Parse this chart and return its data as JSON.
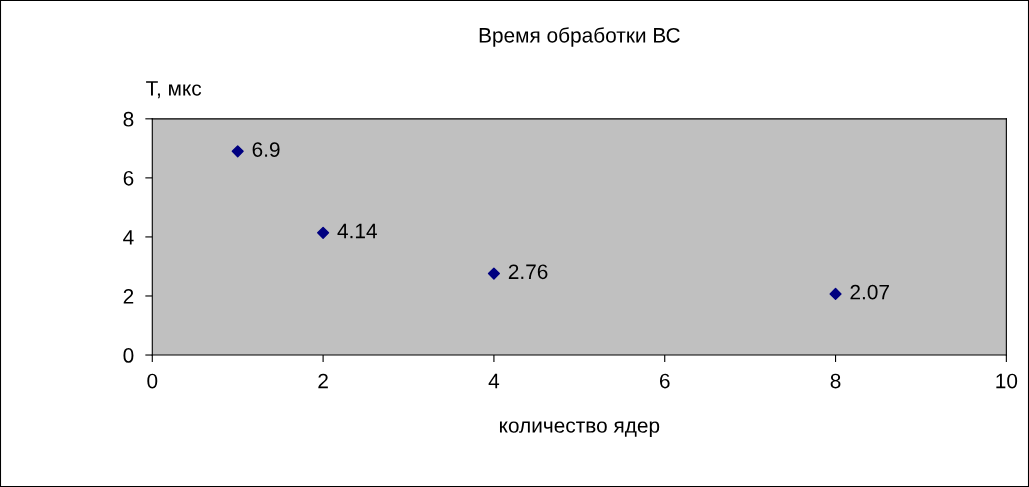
{
  "chart_data": {
    "type": "scatter",
    "title": "Время обработки ВС",
    "xlabel": "количество ядер",
    "ylabel": "T, мкс",
    "x": [
      1,
      2,
      4,
      8
    ],
    "series": [
      {
        "color": "#000080",
        "values": [
          6.9,
          4.14,
          2.76,
          2.07
        ]
      }
    ],
    "xlim": [
      0,
      10
    ],
    "xticks": [
      0,
      2,
      4,
      6,
      8,
      10
    ],
    "ylim": [
      0,
      8
    ],
    "yticks": [
      0,
      2,
      4,
      6,
      8
    ],
    "marker": "diamond",
    "data_labels": true,
    "grid": false,
    "legend": false
  }
}
